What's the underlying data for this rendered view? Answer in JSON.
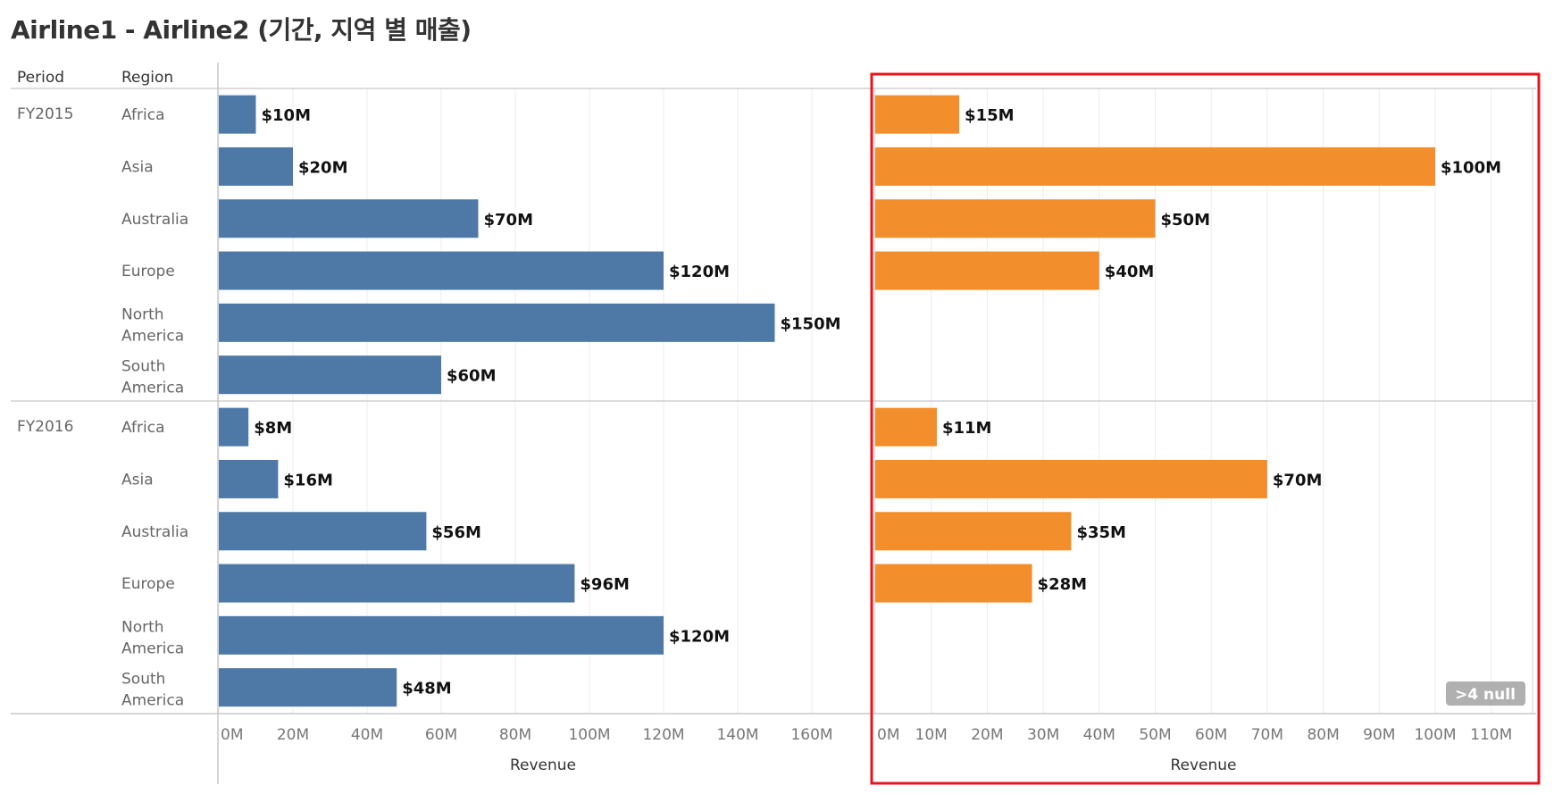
{
  "title": "Airline1 - Airline2 (기간, 지역 별 매출)",
  "headers": {
    "period": "Period",
    "region": "Region"
  },
  "null_badge": ">4 null",
  "colors": {
    "airline1": "#4e79a7",
    "airline2": "#f28e2b",
    "highlight": "#e8141c"
  },
  "chart_data": [
    {
      "type": "bar",
      "orientation": "horizontal",
      "panel": "Airline1",
      "periods": [
        "FY2015",
        "FY2016"
      ],
      "categories": [
        "Africa",
        "Asia",
        "Australia",
        "Europe",
        "North America",
        "South America"
      ],
      "series": [
        {
          "name": "FY2015",
          "values": [
            10,
            20,
            70,
            120,
            150,
            60
          ],
          "labels": [
            "$10M",
            "$20M",
            "$70M",
            "$120M",
            "$150M",
            "$60M"
          ]
        },
        {
          "name": "FY2016",
          "values": [
            8,
            16,
            56,
            96,
            120,
            48
          ],
          "labels": [
            "$8M",
            "$16M",
            "$56M",
            "$96M",
            "$120M",
            "$48M"
          ]
        }
      ],
      "xlabel": "Revenue",
      "xlim": [
        0,
        175
      ],
      "xticks": [
        0,
        20,
        40,
        60,
        80,
        100,
        120,
        140,
        160
      ],
      "xtick_labels": [
        "0M",
        "20M",
        "40M",
        "60M",
        "80M",
        "100M",
        "120M",
        "140M",
        "160M"
      ],
      "grid": true
    },
    {
      "type": "bar",
      "orientation": "horizontal",
      "panel": "Airline2",
      "periods": [
        "FY2015",
        "FY2016"
      ],
      "categories": [
        "Africa",
        "Asia",
        "Australia",
        "Europe",
        "North America",
        "South America"
      ],
      "series": [
        {
          "name": "FY2015",
          "values": [
            15,
            100,
            50,
            40,
            null,
            null
          ],
          "labels": [
            "$15M",
            "$100M",
            "$50M",
            "$40M",
            null,
            null
          ]
        },
        {
          "name": "FY2016",
          "values": [
            11,
            70,
            35,
            28,
            null,
            null
          ],
          "labels": [
            "$11M",
            "$70M",
            "$35M",
            "$28M",
            null,
            null
          ]
        }
      ],
      "xlabel": "Revenue",
      "xlim": [
        0,
        117
      ],
      "xticks": [
        0,
        10,
        20,
        30,
        40,
        50,
        60,
        70,
        80,
        90,
        100,
        110
      ],
      "xtick_labels": [
        "0M",
        "10M",
        "20M",
        "30M",
        "40M",
        "50M",
        "60M",
        "70M",
        "80M",
        "90M",
        "100M",
        "110M"
      ],
      "grid": true,
      "highlighted": true
    }
  ]
}
